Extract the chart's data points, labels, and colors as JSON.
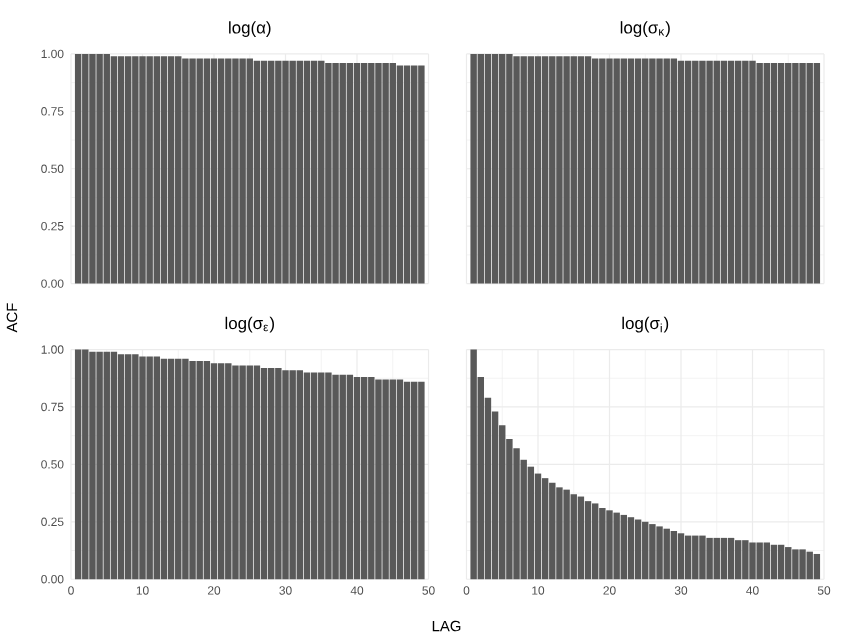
{
  "chart_data": [
    {
      "type": "bar",
      "title": "log(α)",
      "x": [
        1,
        2,
        3,
        4,
        5,
        6,
        7,
        8,
        9,
        10,
        11,
        12,
        13,
        14,
        15,
        16,
        17,
        18,
        19,
        20,
        21,
        22,
        23,
        24,
        25,
        26,
        27,
        28,
        29,
        30,
        31,
        32,
        33,
        34,
        35,
        36,
        37,
        38,
        39,
        40,
        41,
        42,
        43,
        44,
        45,
        46,
        47,
        48,
        49
      ],
      "values": [
        1.0,
        1.0,
        1.0,
        1.0,
        1.0,
        0.99,
        0.99,
        0.99,
        0.99,
        0.99,
        0.99,
        0.99,
        0.99,
        0.99,
        0.99,
        0.98,
        0.98,
        0.98,
        0.98,
        0.98,
        0.98,
        0.98,
        0.98,
        0.98,
        0.98,
        0.97,
        0.97,
        0.97,
        0.97,
        0.97,
        0.97,
        0.97,
        0.97,
        0.97,
        0.97,
        0.96,
        0.96,
        0.96,
        0.96,
        0.96,
        0.96,
        0.96,
        0.96,
        0.96,
        0.96,
        0.95,
        0.95,
        0.95,
        0.95
      ],
      "color": "#595959",
      "xlim": [
        0,
        50
      ],
      "ylim": [
        0,
        1
      ],
      "xticks": [
        {
          "value": 0,
          "label": null
        },
        {
          "value": 10,
          "label": null
        },
        {
          "value": 20,
          "label": null
        },
        {
          "value": 30,
          "label": null
        },
        {
          "value": 40,
          "label": null
        },
        {
          "value": 50,
          "label": null
        }
      ],
      "yticks": [
        {
          "value": 0,
          "label": "0.00"
        },
        {
          "value": 0.25,
          "label": "0.25"
        },
        {
          "value": 0.5,
          "label": "0.50"
        },
        {
          "value": 0.75,
          "label": "0.75"
        },
        {
          "value": 1,
          "label": "1.00"
        }
      ],
      "grid": true,
      "tick_labels": "y"
    },
    {
      "type": "bar",
      "title": "log(σ$_{κ}$)",
      "x": [
        1,
        2,
        3,
        4,
        5,
        6,
        7,
        8,
        9,
        10,
        11,
        12,
        13,
        14,
        15,
        16,
        17,
        18,
        19,
        20,
        21,
        22,
        23,
        24,
        25,
        26,
        27,
        28,
        29,
        30,
        31,
        32,
        33,
        34,
        35,
        36,
        37,
        38,
        39,
        40,
        41,
        42,
        43,
        44,
        45,
        46,
        47,
        48,
        49
      ],
      "values": [
        1.0,
        1.0,
        1.0,
        1.0,
        1.0,
        1.0,
        0.99,
        0.99,
        0.99,
        0.99,
        0.99,
        0.99,
        0.99,
        0.99,
        0.99,
        0.99,
        0.99,
        0.98,
        0.98,
        0.98,
        0.98,
        0.98,
        0.98,
        0.98,
        0.98,
        0.98,
        0.98,
        0.98,
        0.98,
        0.97,
        0.97,
        0.97,
        0.97,
        0.97,
        0.97,
        0.97,
        0.97,
        0.97,
        0.97,
        0.97,
        0.96,
        0.96,
        0.96,
        0.96,
        0.96,
        0.96,
        0.96,
        0.96,
        0.96
      ],
      "color": "#595959",
      "xlim": [
        0,
        50
      ],
      "ylim": [
        0,
        1
      ],
      "xticks": [
        {
          "value": 0,
          "label": null
        },
        {
          "value": 10,
          "label": null
        },
        {
          "value": 20,
          "label": null
        },
        {
          "value": 30,
          "label": null
        },
        {
          "value": 40,
          "label": null
        },
        {
          "value": 50,
          "label": null
        }
      ],
      "yticks": [
        {
          "value": 0,
          "label": null
        },
        {
          "value": 0.25,
          "label": null
        },
        {
          "value": 0.5,
          "label": null
        },
        {
          "value": 0.75,
          "label": null
        },
        {
          "value": 1,
          "label": null
        }
      ],
      "grid": true,
      "tick_labels": false
    },
    {
      "type": "bar",
      "title": "log(σ$_{ε}$)",
      "ylabel": "ACF",
      "x": [
        1,
        2,
        3,
        4,
        5,
        6,
        7,
        8,
        9,
        10,
        11,
        12,
        13,
        14,
        15,
        16,
        17,
        18,
        19,
        20,
        21,
        22,
        23,
        24,
        25,
        26,
        27,
        28,
        29,
        30,
        31,
        32,
        33,
        34,
        35,
        36,
        37,
        38,
        39,
        40,
        41,
        42,
        43,
        44,
        45,
        46,
        47,
        48,
        49
      ],
      "values": [
        1.0,
        1.0,
        0.99,
        0.99,
        0.99,
        0.99,
        0.98,
        0.98,
        0.98,
        0.97,
        0.97,
        0.97,
        0.96,
        0.96,
        0.96,
        0.96,
        0.95,
        0.95,
        0.95,
        0.94,
        0.94,
        0.94,
        0.93,
        0.93,
        0.93,
        0.93,
        0.92,
        0.92,
        0.92,
        0.91,
        0.91,
        0.91,
        0.9,
        0.9,
        0.9,
        0.9,
        0.89,
        0.89,
        0.89,
        0.88,
        0.88,
        0.88,
        0.87,
        0.87,
        0.87,
        0.87,
        0.86,
        0.86,
        0.86
      ],
      "color": "#595959",
      "xlim": [
        0,
        50
      ],
      "ylim": [
        0,
        1
      ],
      "xticks": [
        0,
        10,
        20,
        30,
        40,
        50
      ],
      "yticks": [
        {
          "value": 0,
          "label": "0.00"
        },
        {
          "value": 0.25,
          "label": "0.25"
        },
        {
          "value": 0.5,
          "label": "0.50"
        },
        {
          "value": 0.75,
          "label": "0.75"
        },
        {
          "value": 1,
          "label": "1.00"
        }
      ],
      "grid": true
    },
    {
      "type": "bar",
      "title": "log(σ$_{i}$)",
      "xlabel": "LAG",
      "x": [
        1,
        2,
        3,
        4,
        5,
        6,
        7,
        8,
        9,
        10,
        11,
        12,
        13,
        14,
        15,
        16,
        17,
        18,
        19,
        20,
        21,
        22,
        23,
        24,
        25,
        26,
        27,
        28,
        29,
        30,
        31,
        32,
        33,
        34,
        35,
        36,
        37,
        38,
        39,
        40,
        41,
        42,
        43,
        44,
        45,
        46,
        47,
        48,
        49
      ],
      "values": [
        1.0,
        0.88,
        0.79,
        0.73,
        0.67,
        0.61,
        0.57,
        0.52,
        0.49,
        0.46,
        0.44,
        0.42,
        0.4,
        0.39,
        0.37,
        0.36,
        0.34,
        0.33,
        0.31,
        0.3,
        0.29,
        0.28,
        0.27,
        0.26,
        0.25,
        0.24,
        0.23,
        0.22,
        0.21,
        0.2,
        0.19,
        0.19,
        0.19,
        0.18,
        0.18,
        0.18,
        0.18,
        0.17,
        0.17,
        0.16,
        0.16,
        0.16,
        0.15,
        0.15,
        0.14,
        0.13,
        0.13,
        0.12,
        0.11
      ],
      "color": "#595959",
      "xlim": [
        0,
        50
      ],
      "ylim": [
        0,
        1
      ],
      "xticks": [
        0,
        10,
        20,
        30,
        40,
        50
      ],
      "yticks": [
        {
          "value": 0,
          "label": null
        },
        {
          "value": 0.25,
          "label": null
        },
        {
          "value": 0.5,
          "label": null
        },
        {
          "value": 0.75,
          "label": null
        },
        {
          "value": 1,
          "label": null
        }
      ],
      "grid": true,
      "tick_labels": "x"
    }
  ]
}
